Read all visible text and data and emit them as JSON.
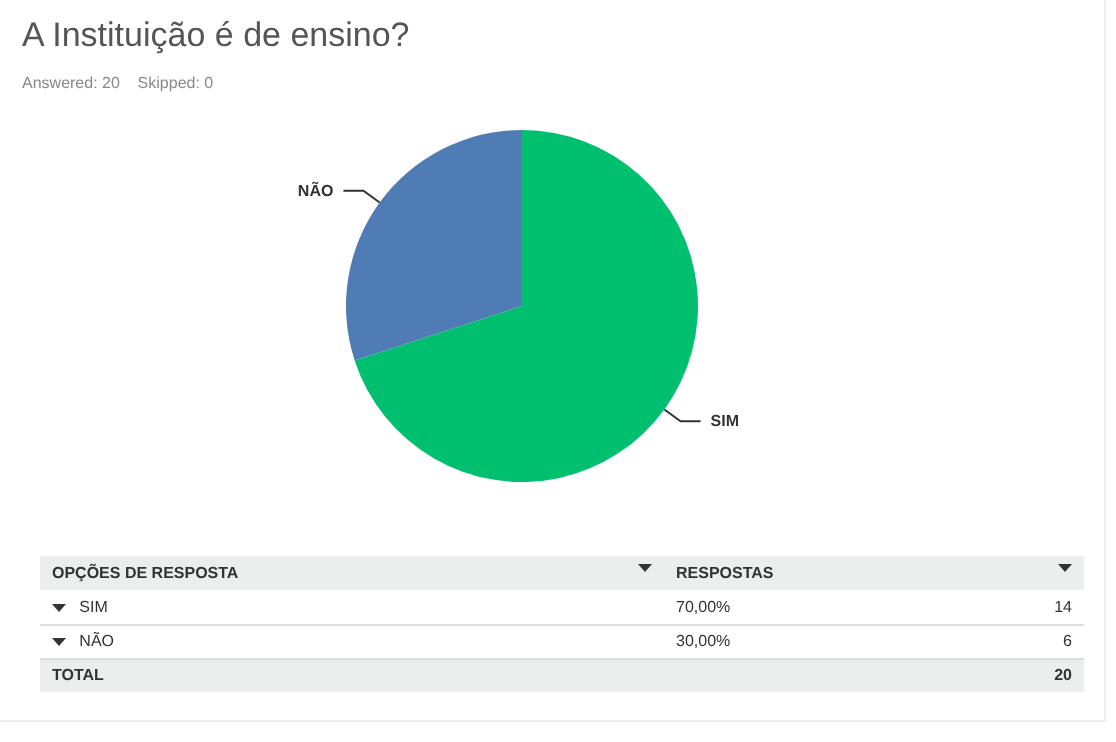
{
  "chart_data": {
    "type": "pie",
    "title": "A Instituição é de ensino?",
    "subtitle": "Answered: 20    Skipped: 0",
    "categories": [
      "SIM",
      "NÃO"
    ],
    "values": [
      70,
      30
    ],
    "colors": [
      "#00bf6f",
      "#507cb6"
    ],
    "annotations": [
      "OPÇÕES DE RESPOSTA",
      "RESPOSTAS",
      "TOTAL",
      "20",
      "70,00%",
      "14",
      "30,00%",
      "6"
    ]
  }
}
